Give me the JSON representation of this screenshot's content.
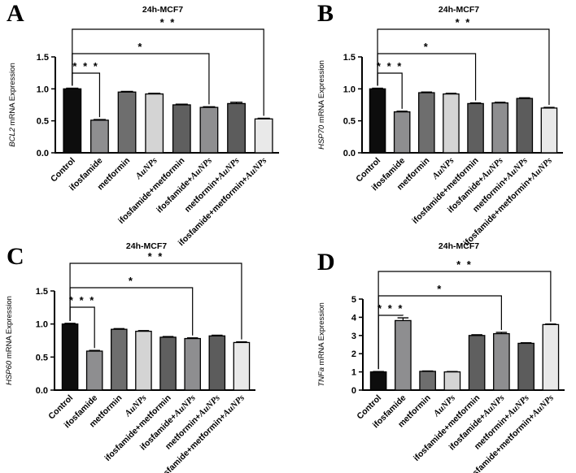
{
  "colors": {
    "bars": [
      "#0d0d0d",
      "#8e8e90",
      "#6e6e6e",
      "#d4d4d4",
      "#5f5f5f",
      "#8e8e90",
      "#5c5c5c",
      "#e9e9e9"
    ],
    "axis": "#000000"
  },
  "chart_data": [
    {
      "letter": "A",
      "type": "bar",
      "title": "24h-MCF7",
      "gene": "BCL2",
      "ylabel_suffix": " mRNA Expression",
      "ylim": [
        0,
        1.5
      ],
      "yticks": [
        "0.0",
        "0.5",
        "1.0",
        "1.5"
      ],
      "tick_values": [
        0,
        0.5,
        1.0,
        1.5
      ],
      "categories": [
        "Control",
        "ifosfamide",
        "metformin",
        "AuNPs",
        "ifosfamide+metformin",
        "ifosfamide+AuNPs",
        "metformin+AuNPs",
        "ifosfamide+metformin+AuNPs"
      ],
      "values": [
        1.0,
        0.51,
        0.95,
        0.92,
        0.75,
        0.71,
        0.77,
        0.53
      ],
      "errors": [
        0.01,
        0.01,
        0.01,
        0.01,
        0.01,
        0.01,
        0.02,
        0.01
      ],
      "significance": [
        {
          "label": "***",
          "from": 0,
          "to": 1
        },
        {
          "label": "*",
          "from": 0,
          "to": 5
        },
        {
          "label": "**",
          "from": 0,
          "to": 7
        }
      ]
    },
    {
      "letter": "B",
      "type": "bar",
      "title": "24h-MCF7",
      "gene": "HSP70",
      "ylabel_suffix": " mRNA Expression",
      "ylim": [
        0,
        1.5
      ],
      "yticks": [
        "0.0",
        "0.5",
        "1.0",
        "1.5"
      ],
      "tick_values": [
        0,
        0.5,
        1.0,
        1.5
      ],
      "categories": [
        "Control",
        "ifosfamide",
        "metformin",
        "AuNPs",
        "ifosfamide+metformin",
        "ifosfamide+AuNPs",
        "metformin+AuNPs",
        "ifosfamide+metformin+AuNPs"
      ],
      "values": [
        1.0,
        0.64,
        0.94,
        0.92,
        0.77,
        0.78,
        0.85,
        0.7
      ],
      "errors": [
        0.01,
        0.01,
        0.01,
        0.01,
        0.01,
        0.01,
        0.01,
        0.01
      ],
      "significance": [
        {
          "label": "***",
          "from": 0,
          "to": 1
        },
        {
          "label": "*",
          "from": 0,
          "to": 4
        },
        {
          "label": "**",
          "from": 0,
          "to": 7
        }
      ]
    },
    {
      "letter": "C",
      "type": "bar",
      "title": "24h-MCF7",
      "gene": "HSP60",
      "ylabel_suffix": "  mRNA Expression",
      "ylim": [
        0,
        1.5
      ],
      "yticks": [
        "0.0",
        "0.5",
        "1.0",
        "1.5"
      ],
      "tick_values": [
        0,
        0.5,
        1.0,
        1.5
      ],
      "categories": [
        "Control",
        "ifosfamide",
        "metformin",
        "AuNPs",
        "ifosfamide+metformin",
        "ifosfamide+AuNPs",
        "metformin+AuNPs",
        "ifosfamide+metformin+AuNPs"
      ],
      "values": [
        1.0,
        0.59,
        0.92,
        0.89,
        0.8,
        0.78,
        0.82,
        0.72
      ],
      "errors": [
        0.01,
        0.01,
        0.01,
        0.01,
        0.01,
        0.01,
        0.01,
        0.01
      ],
      "significance": [
        {
          "label": "***",
          "from": 0,
          "to": 1
        },
        {
          "label": "*",
          "from": 0,
          "to": 5
        },
        {
          "label": "**",
          "from": 0,
          "to": 7
        }
      ]
    },
    {
      "letter": "D",
      "type": "bar",
      "title": "24h-MCF7",
      "gene": "TNFa",
      "ylabel_suffix": " mRNA Expression",
      "ylim": [
        0,
        5
      ],
      "yticks": [
        "0",
        "1",
        "2",
        "3",
        "4",
        "5"
      ],
      "tick_values": [
        0,
        1,
        2,
        3,
        4,
        5
      ],
      "categories": [
        "Control",
        "ifosfamide",
        "metformin",
        "AuNPs",
        "ifosfamide+metformin",
        "ifosfamide+AuNPs",
        "metformin+AuNPs",
        "ifosfamide+metformin+AuNPs"
      ],
      "values": [
        1.0,
        3.82,
        1.03,
        1.0,
        3.0,
        3.1,
        2.57,
        3.6
      ],
      "errors": [
        0.02,
        0.15,
        0.02,
        0.02,
        0.04,
        0.07,
        0.03,
        0.03
      ],
      "significance": [
        {
          "label": "***",
          "from": 0,
          "to": 1
        },
        {
          "label": "*",
          "from": 0,
          "to": 5
        },
        {
          "label": "**",
          "from": 0,
          "to": 7
        }
      ]
    }
  ]
}
